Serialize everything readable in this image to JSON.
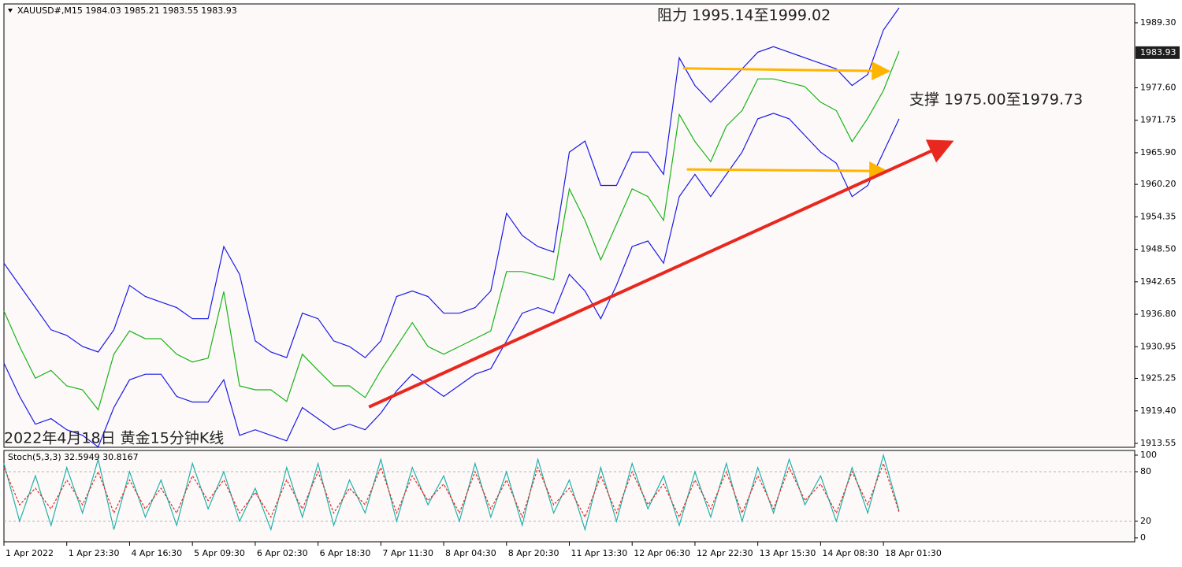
{
  "chart_data": [
    {
      "type": "line",
      "title": "XAUUSD#,M15  1984.03 1985.21 1983.55 1983.93",
      "annotations": [
        "阻力 1995.14至1999.02",
        "支撑 1975.00至1979.73",
        "2022年4月18日 黄金15分钟K线"
      ],
      "xlim": [
        0,
        18
      ],
      "ylim": [
        1912.84,
        1992.7
      ],
      "yticks": [
        1913.55,
        {
          "value": 1919.4,
          "label": "1919.40"
        },
        1925.25,
        1930.95,
        {
          "value": 1936.8,
          "label": "1936.80"
        },
        1942.65,
        {
          "value": 1948.5,
          "label": "1948.50"
        },
        1954.35,
        {
          "value": 1960.2,
          "label": "1960.20"
        },
        {
          "value": 1965.9,
          "label": "1965.90"
        },
        1971.75,
        {
          "value": 1977.6,
          "label": "1977.60"
        },
        {
          "value": 1989.3,
          "label": "1989.30"
        }
      ],
      "last_price": 1983.93,
      "x": [
        0,
        0.25,
        0.5,
        0.75,
        1,
        1.25,
        1.5,
        1.75,
        2,
        2.25,
        2.5,
        2.75,
        3,
        3.25,
        3.5,
        3.75,
        4,
        4.25,
        4.5,
        4.75,
        5,
        5.25,
        5.5,
        5.75,
        6,
        6.25,
        6.5,
        6.75,
        7,
        7.25,
        7.5,
        7.75,
        8,
        8.25,
        8.5,
        8.75,
        9,
        9.25,
        9.5,
        9.75,
        10,
        10.25,
        10.5,
        10.75,
        11,
        11.25,
        11.5,
        11.75,
        12,
        12.25,
        12.5,
        12.75,
        13,
        13.25,
        13.5,
        13.75,
        14,
        14.25
      ],
      "series": [
        {
          "color": "#1a1ae6",
          "values": [
            1946,
            1942,
            1938,
            1934,
            1933,
            1931,
            1930,
            1934,
            1942,
            1940,
            1939,
            1938,
            1936,
            1936,
            1949,
            1944,
            1932,
            1930,
            1929,
            1937,
            1936,
            1932,
            1931,
            1929,
            1932,
            1940,
            1941,
            1940,
            1937,
            1937,
            1938,
            1941,
            1955,
            1951,
            1949,
            1948,
            1966,
            1968,
            1960,
            1960,
            1966,
            1966,
            1962,
            1983,
            1978,
            1975,
            1978,
            1981,
            1984,
            1985,
            1984,
            1983,
            1982,
            1981,
            1978,
            1980,
            1988,
            1992
          ]
        },
        {
          "color": "#1a1ae6",
          "values": [
            1928,
            1922,
            1917,
            1918,
            1916,
            1915,
            1912.9,
            1920,
            1925,
            1926,
            1926,
            1922,
            1921,
            1921,
            1925,
            1915,
            1916,
            1915,
            1914,
            1920,
            1918,
            1916,
            1917,
            1916,
            1919,
            1923,
            1926,
            1924,
            1922,
            1924,
            1926,
            1927,
            1932,
            1937,
            1938,
            1937,
            1944,
            1941,
            1936,
            1942,
            1949,
            1950,
            1946,
            1958,
            1962,
            1958,
            1962,
            1966,
            1972,
            1973,
            1972,
            1969,
            1966,
            1964,
            1958,
            1960,
            1966,
            1972
          ]
        },
        {
          "color": "#18b418",
          "values": [
            1937.4,
            1931,
            1925.3,
            1926.7,
            1923.9,
            1923.2,
            1919.6,
            1929.6,
            1933.8,
            1932.4,
            1932.4,
            1929.6,
            1928.2,
            1928.9,
            1940.9,
            1923.9,
            1923.2,
            1923.2,
            1921.1,
            1929.6,
            1926.7,
            1923.9,
            1923.9,
            1921.8,
            1926.7,
            1931,
            1935.3,
            1931,
            1929.6,
            1931,
            1932.4,
            1933.8,
            1944.5,
            1944.5,
            1943.8,
            1943,
            1959.4,
            1953.7,
            1946.6,
            1953,
            1959.4,
            1958,
            1953.7,
            1972.8,
            1967.9,
            1964.3,
            1970.7,
            1973.5,
            1979.2,
            1979.2,
            1978.5,
            1977.8,
            1975,
            1973.5,
            1967.9,
            1972.1,
            1977.1,
            1984.2
          ]
        }
      ],
      "arrows": [
        {
          "from": [
            10.81,
            1981.1
          ],
          "to": [
            14.04,
            1980.6
          ],
          "color": "#ffb400"
        },
        {
          "from": [
            10.87,
            1962.9
          ],
          "to": [
            14.0,
            1962.6
          ],
          "color": "#ffb400"
        },
        {
          "from": [
            5.81,
            1920.1
          ],
          "to": [
            15.03,
            1967.6
          ],
          "color": "#e8281e"
        }
      ]
    },
    {
      "type": "line",
      "title": "Stoch(5,3,3) 32.5949 30.8167",
      "xlim": [
        0,
        18
      ],
      "ylim": [
        -4.8,
        105.7
      ],
      "yticks": [
        0,
        20,
        80,
        100
      ],
      "levels": [
        20,
        80
      ],
      "xticks": [
        {
          "value": 0,
          "label": "1 Apr 2022"
        },
        {
          "value": 1,
          "label": "1 Apr 23:30"
        },
        {
          "value": 2,
          "label": "4 Apr 16:30"
        },
        {
          "value": 3,
          "label": "5 Apr 09:30"
        },
        {
          "value": 4,
          "label": "6 Apr 02:30"
        },
        {
          "value": 5,
          "label": "6 Apr 18:30"
        },
        {
          "value": 6,
          "label": "7 Apr 11:30"
        },
        {
          "value": 7,
          "label": "8 Apr 04:30"
        },
        {
          "value": 8,
          "label": "8 Apr 20:30"
        },
        {
          "value": 9,
          "label": "11 Apr 13:30"
        },
        {
          "value": 10,
          "label": "12 Apr 06:30"
        },
        {
          "value": 11,
          "label": "12 Apr 22:30"
        },
        {
          "value": 12,
          "label": "13 Apr 15:30"
        },
        {
          "value": 13,
          "label": "14 Apr 08:30"
        },
        {
          "value": 14,
          "label": "18 Apr 01:30"
        }
      ],
      "x": [
        0,
        0.25,
        0.5,
        0.75,
        1,
        1.25,
        1.5,
        1.75,
        2,
        2.25,
        2.5,
        2.75,
        3,
        3.25,
        3.5,
        3.75,
        4,
        4.25,
        4.5,
        4.75,
        5,
        5.25,
        5.5,
        5.75,
        6,
        6.25,
        6.5,
        6.75,
        7,
        7.25,
        7.5,
        7.75,
        8,
        8.25,
        8.5,
        8.75,
        9,
        9.25,
        9.5,
        9.75,
        10,
        10.25,
        10.5,
        10.75,
        11,
        11.25,
        11.5,
        11.75,
        12,
        12.25,
        12.5,
        12.75,
        13,
        13.25,
        13.5,
        13.75,
        14,
        14.25
      ],
      "series": [
        {
          "color": "#20b2aa",
          "values": [
            90,
            20,
            75,
            15,
            85,
            30,
            95,
            10,
            80,
            25,
            70,
            15,
            90,
            35,
            80,
            20,
            60,
            10,
            85,
            25,
            90,
            15,
            70,
            30,
            95,
            20,
            85,
            40,
            75,
            20,
            90,
            25,
            80,
            15,
            95,
            30,
            70,
            10,
            85,
            20,
            90,
            35,
            75,
            15,
            80,
            25,
            90,
            20,
            85,
            30,
            95,
            40,
            75,
            20,
            85,
            30,
            100,
            32.5949
          ]
        },
        {
          "color": "#e8281e",
          "dashed": true,
          "values": [
            85,
            40,
            60,
            35,
            70,
            40,
            80,
            30,
            70,
            35,
            60,
            30,
            75,
            45,
            70,
            30,
            55,
            25,
            70,
            35,
            80,
            30,
            60,
            40,
            85,
            30,
            75,
            45,
            65,
            30,
            80,
            35,
            70,
            25,
            85,
            40,
            60,
            25,
            75,
            30,
            80,
            40,
            65,
            25,
            70,
            35,
            80,
            30,
            75,
            35,
            85,
            45,
            65,
            30,
            80,
            40,
            90,
            30.8167
          ]
        }
      ]
    }
  ]
}
